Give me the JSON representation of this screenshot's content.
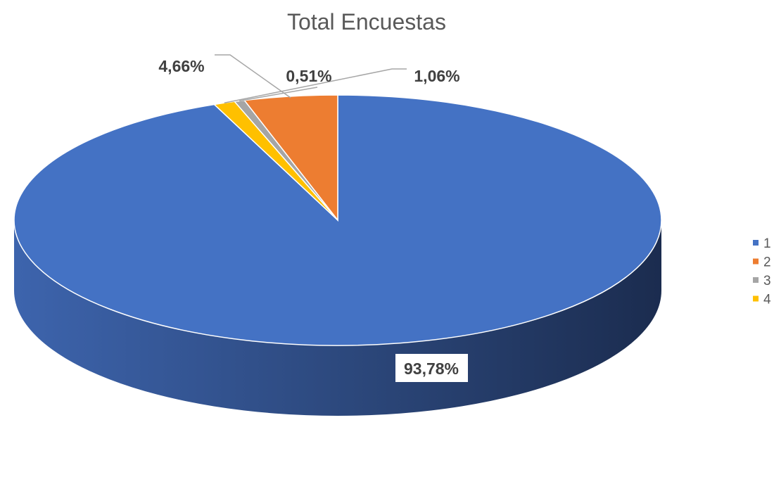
{
  "chart_data": {
    "type": "pie",
    "title": "Total Encuestas",
    "categories": [
      "1",
      "2",
      "3",
      "4"
    ],
    "values": [
      93.78,
      4.66,
      0.51,
      1.06
    ],
    "data_labels": [
      "93,78%",
      "4,66%",
      "0,51%",
      "1,06%"
    ],
    "colors": [
      "#4472C4",
      "#ED7D31",
      "#A5A5A5",
      "#FFC000"
    ],
    "legend_position": "right",
    "style": "3d-pie"
  }
}
